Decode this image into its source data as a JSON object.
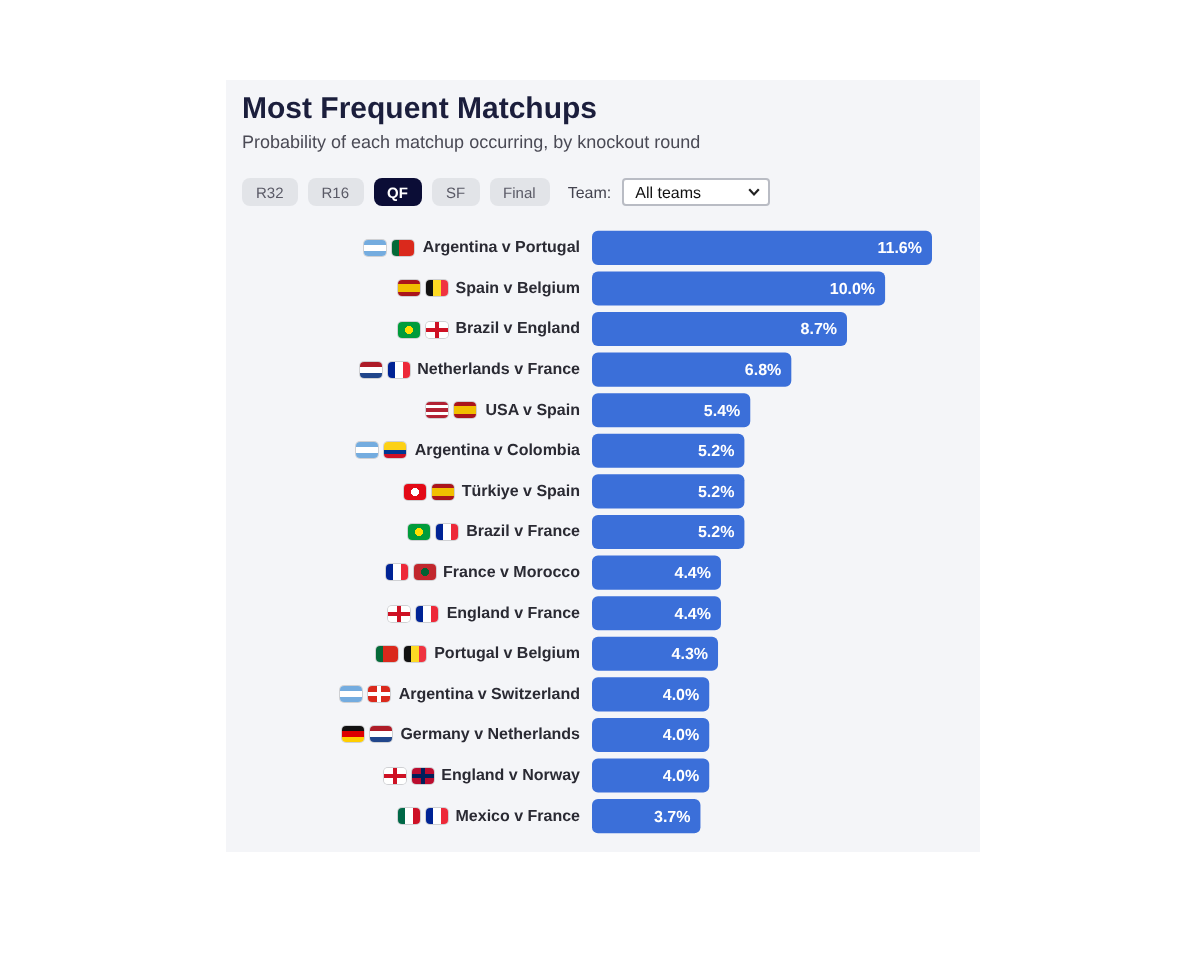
{
  "chart_data": {
    "type": "bar",
    "orientation": "horizontal",
    "title": "Most Frequent Matchups",
    "subtitle": "Probability of each matchup occurring, by knockout round",
    "categories": [
      "Argentina v Portugal",
      "Spain v Belgium",
      "Brazil v England",
      "Netherlands v France",
      "USA v Spain",
      "Argentina v Colombia",
      "Türkiye v Spain",
      "Brazil v France",
      "France v Morocco",
      "England v France",
      "Portugal v Belgium",
      "Argentina v Switzerland",
      "Germany v Netherlands",
      "England v Norway",
      "Mexico v France"
    ],
    "values": [
      11.6,
      10.0,
      8.7,
      6.8,
      5.4,
      5.2,
      5.2,
      5.2,
      4.4,
      4.4,
      4.3,
      4.0,
      4.0,
      4.0,
      3.7
    ],
    "value_labels": [
      "11.6%",
      "10.0%",
      "8.7%",
      "6.8%",
      "5.4%",
      "5.2%",
      "5.2%",
      "5.2%",
      "4.4%",
      "4.4%",
      "4.3%",
      "4.0%",
      "4.0%",
      "4.0%",
      "3.7%"
    ],
    "color": "#3b6fd9",
    "annotations": [
      "R32",
      "R16",
      "QF",
      "SF",
      "Final",
      "Team:",
      "All teams"
    ],
    "tick_labels": "y",
    "legend": false
  }
}
